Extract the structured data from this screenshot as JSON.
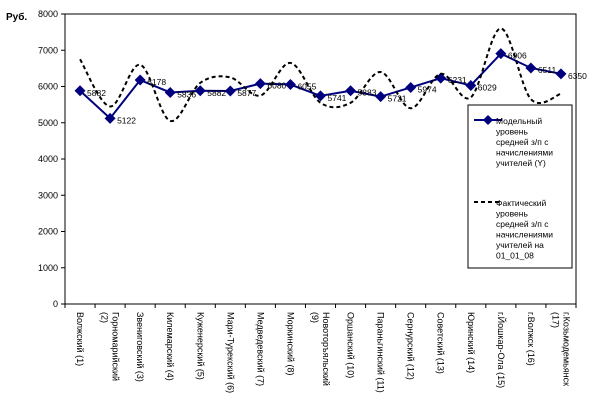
{
  "chart_data": {
    "type": "line",
    "ylabel": "Руб.",
    "ylim": [
      0,
      8000
    ],
    "yticks": [
      0,
      1000,
      2000,
      3000,
      4000,
      5000,
      6000,
      7000,
      8000
    ],
    "categories": [
      [
        "Волжский (1)"
      ],
      [
        "Горномарийский",
        "(2)"
      ],
      [
        "Звениговский (3)"
      ],
      [
        "Килемарский (4)"
      ],
      [
        "Куженерский (5)"
      ],
      [
        "Мари-Турекский (6)"
      ],
      [
        "Медведевский (7)"
      ],
      [
        "Моркинский (8)"
      ],
      [
        "Новоторъяльский",
        "(9)"
      ],
      [
        "Оршанский (10)"
      ],
      [
        "Параньгинский (11)"
      ],
      [
        "Сернурский (12)"
      ],
      [
        "Советский (13)"
      ],
      [
        "Юринский (14)"
      ],
      [
        "г.Йошкар-Ола (15)"
      ],
      [
        "г.Волжск (16)"
      ],
      [
        "г.Козьмодемьянск",
        "(17)"
      ]
    ],
    "series": [
      {
        "name": "Модельный уровень средней з/п с начислениями учителей (Y)",
        "style": "solid",
        "color": "#00007F",
        "values": [
          5882,
          5122,
          6178,
          5836,
          5882,
          5877,
          6080,
          6055,
          5741,
          5883,
          5721,
          5974,
          6231,
          6029,
          6906,
          6511,
          6350
        ],
        "labels": [
          "5882",
          "5122",
          "6178",
          "5836",
          "5882",
          "5877",
          "6080",
          "6055",
          "5741",
          "5883",
          "5721",
          "5974",
          "6231",
          "6029",
          "6906",
          "6511",
          "6350"
        ]
      },
      {
        "name": "Фактический уровень средней з/п с начислениями учителей на 01_01_08",
        "style": "dashed",
        "color": "#000000",
        "values": [
          6750,
          5450,
          6600,
          5050,
          6100,
          6250,
          5750,
          6650,
          5550,
          5550,
          6400,
          5400,
          6350,
          5700,
          7600,
          5650,
          5800
        ]
      }
    ],
    "legend_position": "right"
  }
}
